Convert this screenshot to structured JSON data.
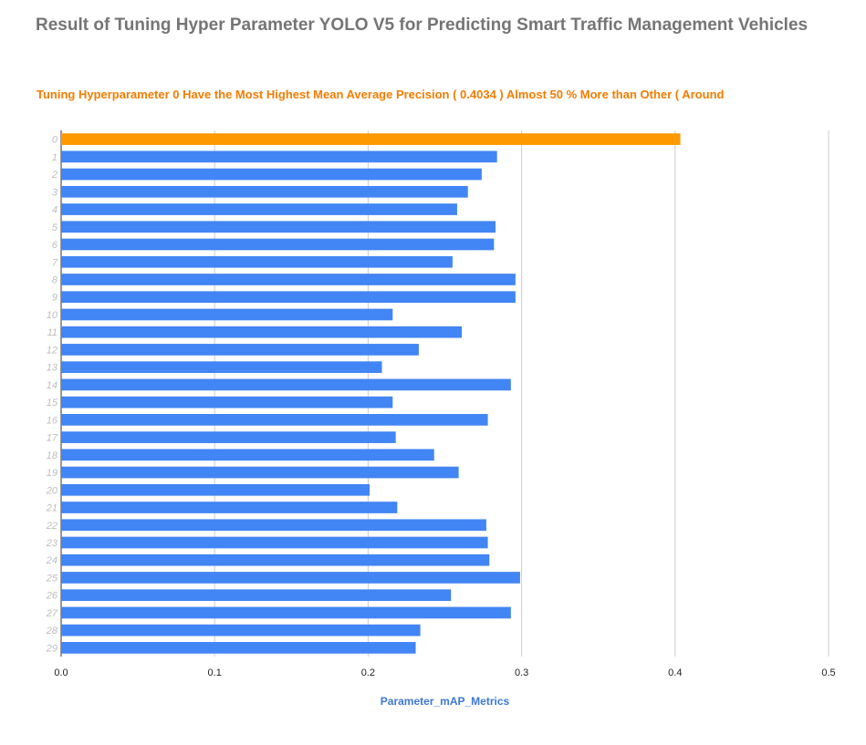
{
  "chart_data": {
    "type": "bar",
    "orientation": "horizontal",
    "title": "Result of Tuning Hyper Parameter YOLO V5 for Predicting Smart Traffic Management Vehicles",
    "subtitle": "Tuning Hyperparameter 0 Have the Most Highest Mean Average Precision ( 0.4034 ) Almost 50 % More than Other ( Around",
    "xlabel": "Parameter_mAP_Metrics",
    "ylabel": "",
    "xlim": [
      0,
      0.5
    ],
    "x_ticks": [
      "0.0",
      "0.1",
      "0.2",
      "0.3",
      "0.4",
      "0.5"
    ],
    "grid": true,
    "categories": [
      "0",
      "1",
      "2",
      "3",
      "4",
      "5",
      "6",
      "7",
      "8",
      "9",
      "10",
      "11",
      "12",
      "13",
      "14",
      "15",
      "16",
      "17",
      "18",
      "19",
      "20",
      "21",
      "22",
      "23",
      "24",
      "25",
      "26",
      "27",
      "28",
      "29"
    ],
    "values": [
      0.4034,
      0.284,
      0.274,
      0.265,
      0.258,
      0.283,
      0.282,
      0.255,
      0.296,
      0.296,
      0.216,
      0.261,
      0.233,
      0.209,
      0.293,
      0.216,
      0.278,
      0.218,
      0.243,
      0.259,
      0.201,
      0.219,
      0.277,
      0.278,
      0.279,
      0.299,
      0.254,
      0.293,
      0.234,
      0.231
    ],
    "highlight_index": 0,
    "colors": {
      "bar": "#4285f4",
      "highlight": "#ff9900",
      "grid": "#cccccc",
      "title": "#757575",
      "subtitle": "#f57c00",
      "xlabel": "#3c78d8"
    }
  }
}
